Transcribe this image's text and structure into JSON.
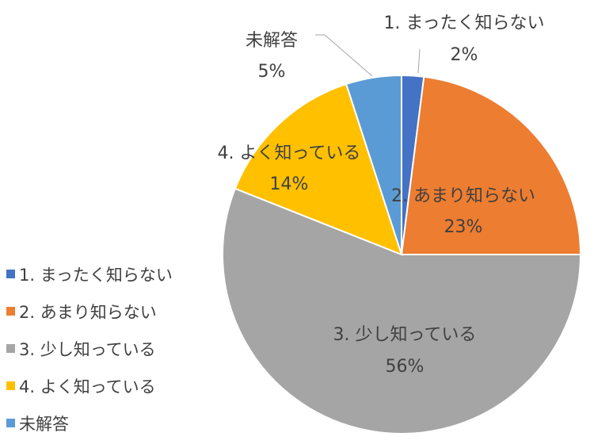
{
  "chart_data": {
    "type": "pie",
    "categories": [
      "1. まったく知らない",
      "2. あまり知らない",
      "3. 少し知っている",
      "4. よく知っている",
      "未解答"
    ],
    "values": [
      2,
      23,
      56,
      14,
      5
    ],
    "value_labels": [
      "2%",
      "23%",
      "56%",
      "14%",
      "5%"
    ],
    "colors": [
      "#4472c4",
      "#ed7d31",
      "#a5a5a5",
      "#ffc000",
      "#5b9bd5"
    ],
    "legend_position": "left"
  }
}
